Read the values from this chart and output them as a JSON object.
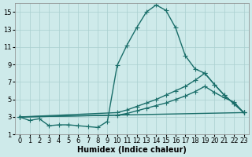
{
  "xlabel": "Humidex (Indice chaleur)",
  "background_color": "#ceeaea",
  "grid_color": "#aacfcf",
  "line_color": "#1a6e6a",
  "ylim": [
    1,
    16
  ],
  "xlim": [
    -0.5,
    23.5
  ],
  "yticks": [
    1,
    3,
    5,
    7,
    9,
    11,
    13,
    15
  ],
  "xticks": [
    0,
    1,
    2,
    3,
    4,
    5,
    6,
    7,
    8,
    9,
    10,
    11,
    12,
    13,
    14,
    15,
    16,
    17,
    18,
    19,
    20,
    21,
    22,
    23
  ],
  "curve1_x": [
    0,
    1,
    2,
    3,
    4,
    5,
    6,
    7,
    8,
    9,
    10,
    11,
    12,
    13,
    14,
    15,
    16,
    17,
    18,
    19,
    20,
    21,
    22,
    23
  ],
  "curve1_y": [
    3.0,
    2.6,
    2.8,
    2.0,
    2.1,
    2.1,
    2.0,
    1.9,
    1.8,
    2.5,
    8.9,
    11.2,
    13.2,
    15.0,
    15.8,
    15.2,
    13.2,
    10.0,
    8.5,
    8.0,
    6.7,
    5.5,
    4.5,
    3.5
  ],
  "curve2_x": [
    0,
    10,
    11,
    12,
    13,
    14,
    15,
    16,
    17,
    18,
    19,
    20,
    21,
    22,
    23
  ],
  "curve2_y": [
    3.0,
    3.5,
    3.8,
    4.2,
    4.6,
    5.0,
    5.5,
    6.0,
    6.5,
    7.2,
    8.0,
    6.7,
    5.5,
    4.5,
    3.5
  ],
  "curve3_x": [
    0,
    10,
    11,
    12,
    13,
    14,
    15,
    16,
    17,
    18,
    19,
    20,
    21,
    22,
    23
  ],
  "curve3_y": [
    3.0,
    3.2,
    3.4,
    3.7,
    4.0,
    4.3,
    4.6,
    5.0,
    5.4,
    5.9,
    6.5,
    5.8,
    5.2,
    4.7,
    3.5
  ],
  "curve4_x": [
    0,
    23
  ],
  "curve4_y": [
    3.0,
    3.5
  ],
  "marker": "+",
  "markersize": 4,
  "linewidth": 1.0,
  "xlabel_fontsize": 7,
  "tick_fontsize": 6
}
